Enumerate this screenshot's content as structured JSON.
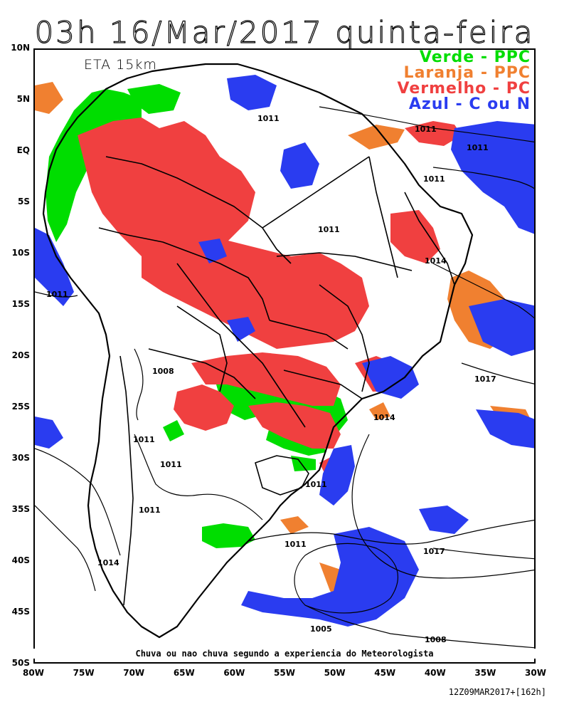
{
  "title": "03h 16/Mar/2017 quinta-feira",
  "model_label": "ETA 15km",
  "legend": [
    {
      "label": "Verde - PPC",
      "color": "#00dd00"
    },
    {
      "label": "Laranja - PPC",
      "color": "#f08030"
    },
    {
      "label": "Vermelho - PC",
      "color": "#f04040"
    },
    {
      "label": "Azul - C ou N",
      "color": "#2a3cf0"
    }
  ],
  "lat_labels": [
    "10N",
    "5N",
    "EQ",
    "5S",
    "10S",
    "15S",
    "20S",
    "25S",
    "30S",
    "35S",
    "40S",
    "45S",
    "50S"
  ],
  "lon_labels": [
    "80W",
    "75W",
    "70W",
    "65W",
    "60W",
    "55W",
    "50W",
    "45W",
    "40W",
    "35W",
    "30W"
  ],
  "isobar_labels": [
    "1011",
    "1011",
    "1011",
    "1011",
    "1011",
    "1014",
    "1011",
    "1008",
    "1017",
    "1014",
    "1011",
    "1011",
    "1011",
    "1011",
    "1014",
    "1011",
    "1017",
    "1005",
    "1008"
  ],
  "footnote": "Chuva ou nao chuva segundo a experiencia do Meteorologista",
  "run_label": "12Z09MAR2017+[162h]",
  "colors": {
    "green": "#00dd00",
    "orange": "#f08030",
    "red": "#f04040",
    "blue": "#2a3cf0"
  }
}
